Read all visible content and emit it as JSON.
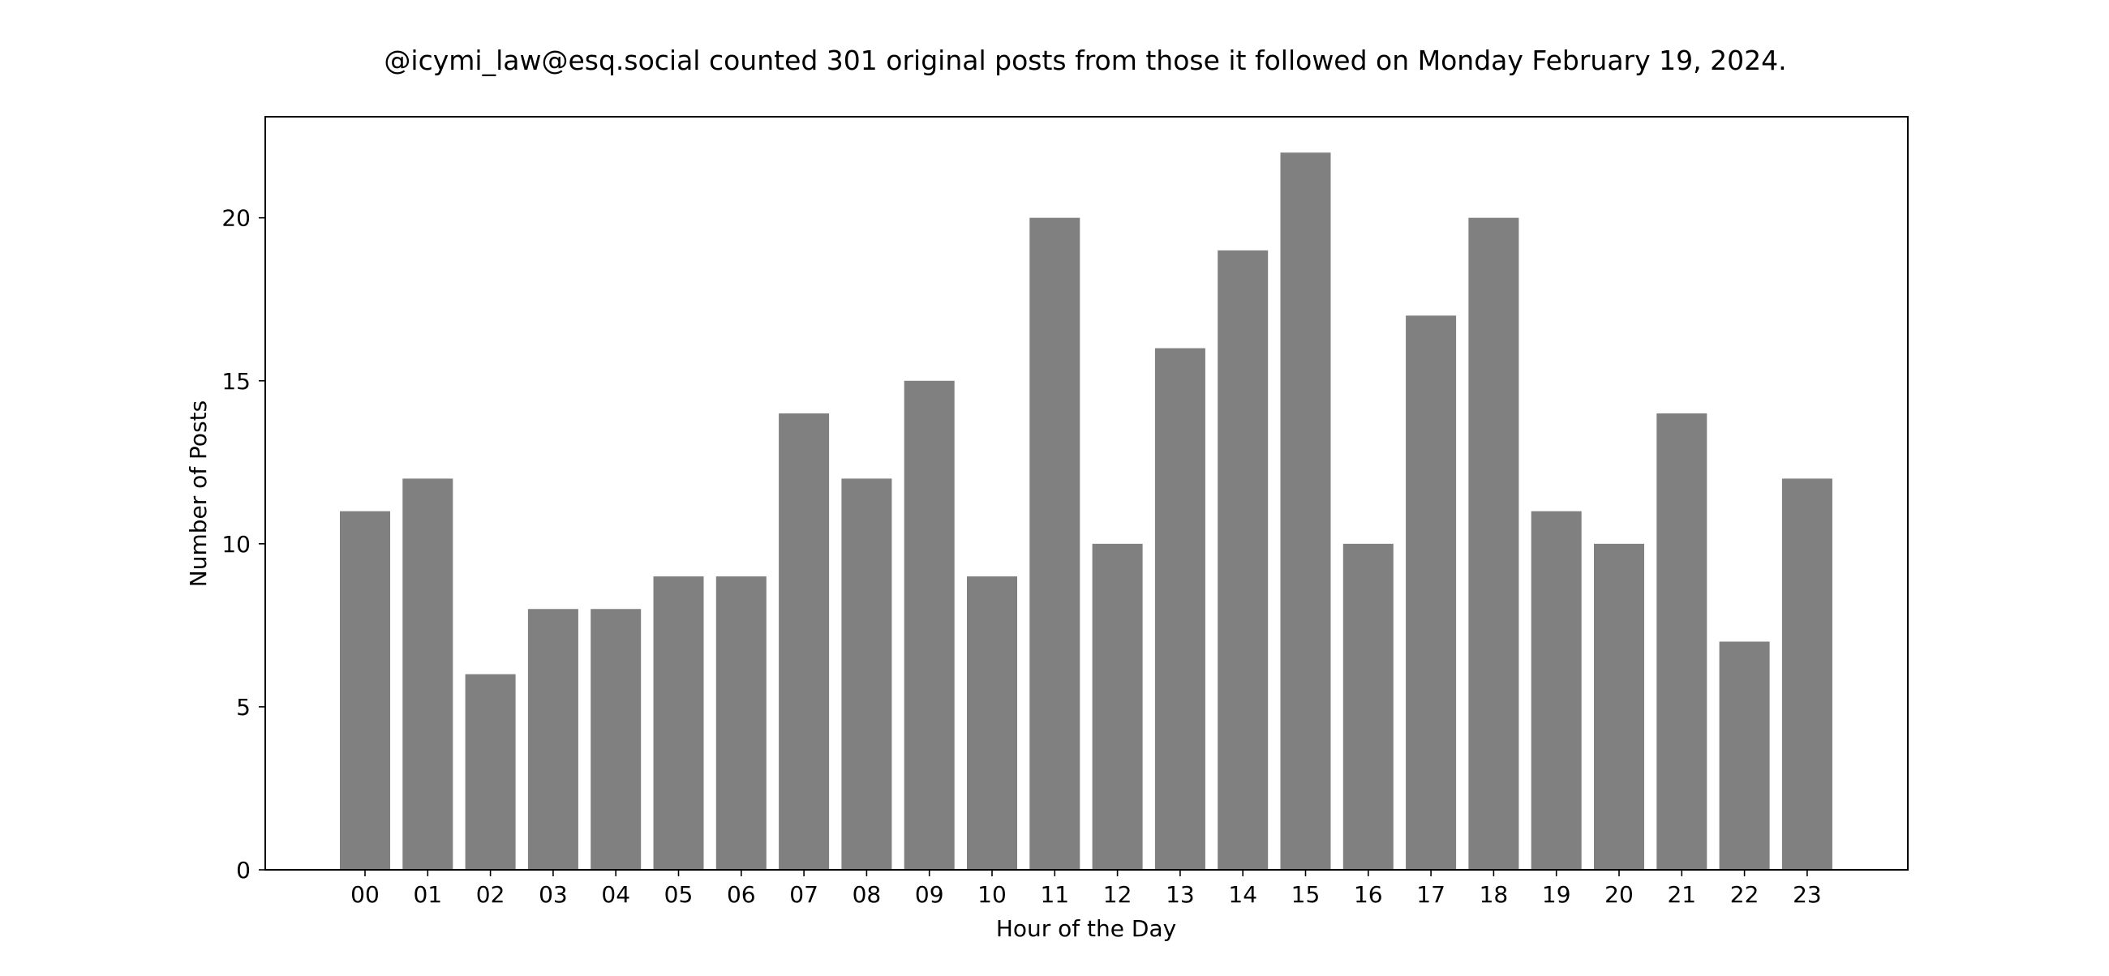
{
  "chart_data": {
    "type": "bar",
    "title": "@icymi_law@esq.social counted 301 original posts from those it followed on Monday February 19, 2024.",
    "xlabel": "Hour of the Day",
    "ylabel": "Number of Posts",
    "categories": [
      "00",
      "01",
      "02",
      "03",
      "04",
      "05",
      "06",
      "07",
      "08",
      "09",
      "10",
      "11",
      "12",
      "13",
      "14",
      "15",
      "16",
      "17",
      "18",
      "19",
      "20",
      "21",
      "22",
      "23"
    ],
    "values": [
      11,
      12,
      6,
      8,
      8,
      9,
      9,
      14,
      12,
      15,
      9,
      20,
      10,
      16,
      19,
      22,
      10,
      17,
      20,
      11,
      10,
      14,
      7,
      12
    ],
    "ylim": [
      0,
      23.1
    ],
    "yticks": [
      0,
      5,
      10,
      15,
      20
    ],
    "grid": false,
    "bar_color": "#808080"
  }
}
